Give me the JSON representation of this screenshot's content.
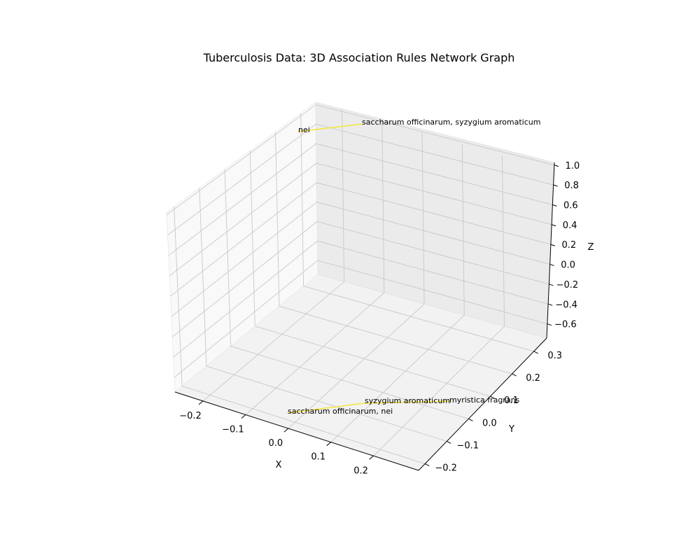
{
  "chart_data": {
    "type": "network-3d",
    "title": "Tuberculosis Data:  3D Association Rules Network Graph",
    "xlabel": "X",
    "ylabel": "Y",
    "zlabel": "Z",
    "x_ticks": [
      "−0.2",
      "−0.1",
      "0.0",
      "0.1",
      "0.2"
    ],
    "y_ticks": [
      "−0.2",
      "−0.1",
      "0.0",
      "0.1",
      "0.2",
      "0.3"
    ],
    "z_ticks": [
      "−0.6",
      "−0.4",
      "−0.2",
      "0.0",
      "0.2",
      "0.4",
      "0.6",
      "0.8",
      "1.0"
    ],
    "edge_color": "#f5e63a",
    "edges": [
      {
        "source": "nei",
        "target": "saccharum officinarum, syzygium aromaticum"
      },
      {
        "source": "saccharum officinarum, nei",
        "target": "syzygium aromaticum"
      },
      {
        "source": "syzygium aromaticum",
        "target": "myristica fragrans"
      }
    ],
    "nodes": [
      {
        "label": "nei"
      },
      {
        "label": "saccharum officinarum, syzygium aromaticum"
      },
      {
        "label": "saccharum officinarum, nei"
      },
      {
        "label": "syzygium aromaticum"
      },
      {
        "label": "myristica fragrans"
      }
    ]
  }
}
